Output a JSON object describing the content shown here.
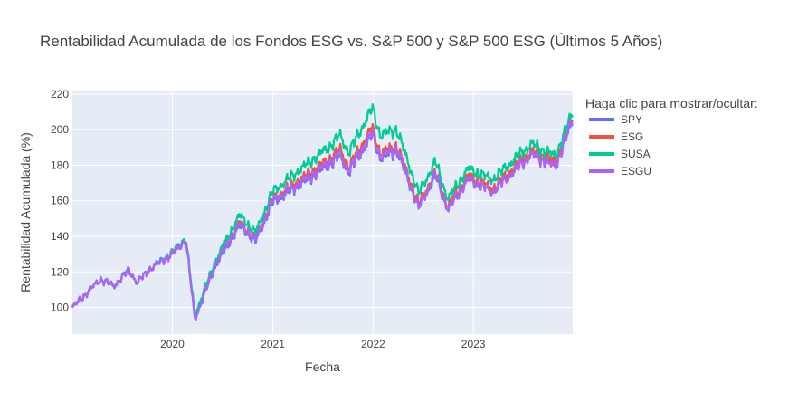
{
  "chart_data": {
    "type": "line",
    "title": "Rentabilidad Acumulada de los Fondos ESG vs. S&P 500 y S&P 500 ESG (Últimos 5 Años)",
    "xlabel": "Fecha",
    "ylabel": "Rentabilidad Acumulada (%)",
    "x_ticks": [
      "2020",
      "2021",
      "2022",
      "2023"
    ],
    "x_tick_values": [
      "2020-01-01",
      "2021-01-01",
      "2022-01-01",
      "2023-01-01"
    ],
    "y_ticks": [
      100,
      120,
      140,
      160,
      180,
      200,
      220
    ],
    "xlim": [
      "2019-01-02",
      "2023-12-29"
    ],
    "ylim": [
      85,
      222
    ],
    "grid": true,
    "legend": {
      "title": "Haga clic para mostrar/ocultar:",
      "position": "right"
    },
    "anchor_dates": [
      "2019-01-02",
      "2019-04-15",
      "2019-06-03",
      "2019-07-26",
      "2019-08-26",
      "2019-10-15",
      "2020-01-02",
      "2020-02-19",
      "2020-03-23",
      "2020-06-08",
      "2020-09-02",
      "2020-10-30",
      "2020-12-31",
      "2021-04-30",
      "2021-07-30",
      "2021-09-02",
      "2021-10-04",
      "2021-12-29",
      "2022-01-27",
      "2022-03-29",
      "2022-06-16",
      "2022-08-16",
      "2022-09-30",
      "2022-12-13",
      "2023-03-13",
      "2023-07-31",
      "2023-10-27",
      "2023-12-29"
    ],
    "series": [
      {
        "name": "SPY",
        "color": "#636efa",
        "values": [
          100,
          116,
          112,
          121,
          114,
          122,
          131,
          139,
          94,
          124,
          146,
          137,
          159,
          171,
          181,
          185,
          176,
          197,
          184,
          188,
          156,
          174,
          155,
          172,
          165,
          186,
          180,
          205
        ]
      },
      {
        "name": "ESG",
        "color": "#ef553b",
        "values": [
          100,
          116,
          112,
          121,
          114,
          122,
          131,
          139,
          95,
          126,
          148,
          139,
          161,
          174,
          184,
          189,
          179,
          201,
          187,
          191,
          158,
          176,
          157,
          174,
          167,
          188,
          182,
          207
        ]
      },
      {
        "name": "SUSA",
        "color": "#00cc96",
        "values": [
          100,
          116,
          112,
          121,
          114,
          122,
          131,
          139,
          96,
          127,
          152,
          142,
          165,
          180,
          191,
          197,
          187,
          212,
          197,
          200,
          164,
          182,
          161,
          178,
          172,
          192,
          185,
          210
        ]
      },
      {
        "name": "ESGU",
        "color": "#ab63fa",
        "values": [
          100,
          116,
          112,
          121,
          114,
          122,
          130,
          138,
          93,
          125,
          147,
          138,
          160,
          172,
          182,
          186,
          177,
          198,
          185,
          189,
          156,
          175,
          155,
          172,
          165,
          186,
          179,
          206
        ]
      }
    ]
  }
}
